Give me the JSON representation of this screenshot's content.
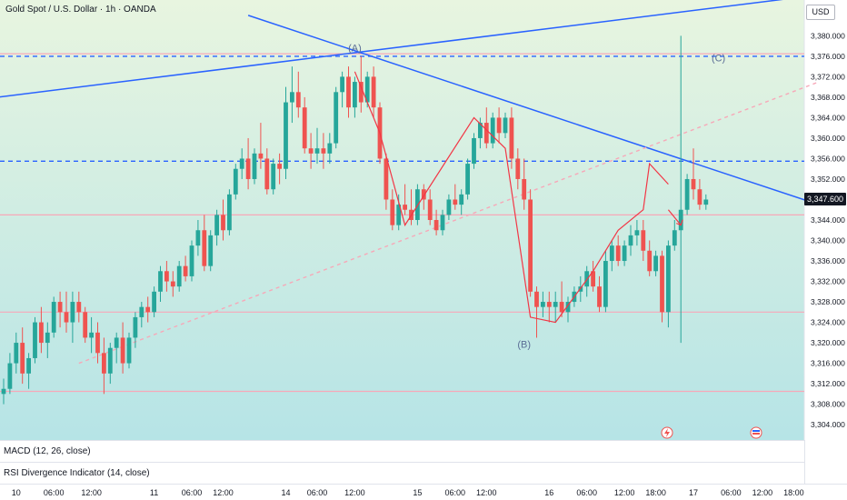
{
  "header": {
    "symbol_title": "Gold Spot / U.S. Dollar · 1h · OANDA",
    "currency": "USD"
  },
  "last_price": "3,347.600",
  "indicators": {
    "macd": "MACD (12, 26, close)",
    "rsi": "RSI Divergence Indicator (14, close)"
  },
  "colors": {
    "up": "#26a69a",
    "down": "#ef5350",
    "trendline": "#2962ff",
    "wave": "#f23645",
    "pink_level": "#f7a8b8",
    "background_top": "#e8f5e0",
    "background_bottom": "#b8e6e6"
  },
  "icons": [
    "flash-event-icon",
    "flag-event-icon"
  ],
  "chart_data": {
    "type": "candlestick",
    "title": "Gold Spot / U.S. Dollar · 1h · OANDA",
    "price_unit": "USD",
    "ylim": [
      3301,
      3387
    ],
    "y_ticks": [
      "3,380.000",
      "3,376.000",
      "3,372.000",
      "3,368.000",
      "3,364.000",
      "3,360.000",
      "3,356.000",
      "3,352.000",
      "3,348.000",
      "3,344.000",
      "3,340.000",
      "3,336.000",
      "3,332.000",
      "3,328.000",
      "3,324.000",
      "3,320.000",
      "3,316.000",
      "3,312.000",
      "3,308.000",
      "3,304.000"
    ],
    "x_ticks": [
      {
        "label": "10",
        "bar": 2
      },
      {
        "label": "06:00",
        "bar": 8
      },
      {
        "label": "12:00",
        "bar": 14
      },
      {
        "label": "11",
        "bar": 24
      },
      {
        "label": "06:00",
        "bar": 30
      },
      {
        "label": "12:00",
        "bar": 35
      },
      {
        "label": "14",
        "bar": 45
      },
      {
        "label": "06:00",
        "bar": 50
      },
      {
        "label": "12:00",
        "bar": 56
      },
      {
        "label": "15",
        "bar": 66
      },
      {
        "label": "06:00",
        "bar": 72
      },
      {
        "label": "12:00",
        "bar": 77
      },
      {
        "label": "16",
        "bar": 87
      },
      {
        "label": "06:00",
        "bar": 93
      },
      {
        "label": "12:00",
        "bar": 99
      },
      {
        "label": "18:00",
        "bar": 104
      },
      {
        "label": "17",
        "bar": 110
      },
      {
        "label": "06:00",
        "bar": 116
      },
      {
        "label": "12:00",
        "bar": 121
      },
      {
        "label": "18:00",
        "bar": 126
      }
    ],
    "ohlc": [
      [
        3310,
        3313,
        3308,
        3311
      ],
      [
        3311,
        3318,
        3310,
        3316
      ],
      [
        3316,
        3322,
        3314,
        3320
      ],
      [
        3320,
        3323,
        3312,
        3314
      ],
      [
        3314,
        3318,
        3311,
        3317
      ],
      [
        3317,
        3325,
        3316,
        3324
      ],
      [
        3324,
        3327,
        3318,
        3320
      ],
      [
        3320,
        3324,
        3317,
        3322
      ],
      [
        3322,
        3329,
        3321,
        3328
      ],
      [
        3328,
        3330,
        3323,
        3326
      ],
      [
        3326,
        3330,
        3322,
        3324
      ],
      [
        3324,
        3330,
        3320,
        3328
      ],
      [
        3328,
        3330,
        3324,
        3326
      ],
      [
        3326,
        3327,
        3320,
        3321
      ],
      [
        3321,
        3325,
        3318,
        3322
      ],
      [
        3322,
        3324,
        3316,
        3318
      ],
      [
        3318,
        3321,
        3310,
        3314
      ],
      [
        3314,
        3320,
        3312,
        3319
      ],
      [
        3319,
        3322,
        3316,
        3321
      ],
      [
        3321,
        3324,
        3314,
        3316
      ],
      [
        3316,
        3322,
        3315,
        3321
      ],
      [
        3321,
        3326,
        3319,
        3325
      ],
      [
        3325,
        3328,
        3323,
        3327
      ],
      [
        3327,
        3329,
        3324,
        3326
      ],
      [
        3326,
        3331,
        3325,
        3330
      ],
      [
        3330,
        3335,
        3328,
        3334
      ],
      [
        3334,
        3336,
        3330,
        3332
      ],
      [
        3332,
        3334,
        3329,
        3331
      ],
      [
        3331,
        3336,
        3330,
        3335
      ],
      [
        3335,
        3337,
        3332,
        3333
      ],
      [
        3333,
        3340,
        3332,
        3339
      ],
      [
        3339,
        3344,
        3337,
        3342
      ],
      [
        3342,
        3345,
        3334,
        3335
      ],
      [
        3335,
        3342,
        3334,
        3341
      ],
      [
        3341,
        3346,
        3339,
        3345
      ],
      [
        3345,
        3348,
        3340,
        3342
      ],
      [
        3342,
        3350,
        3341,
        3349
      ],
      [
        3349,
        3355,
        3348,
        3354
      ],
      [
        3354,
        3358,
        3352,
        3356
      ],
      [
        3356,
        3360,
        3350,
        3352
      ],
      [
        3352,
        3358,
        3351,
        3357
      ],
      [
        3357,
        3363,
        3354,
        3356
      ],
      [
        3356,
        3358,
        3349,
        3350
      ],
      [
        3350,
        3356,
        3349,
        3355
      ],
      [
        3355,
        3357,
        3351,
        3354
      ],
      [
        3354,
        3370,
        3352,
        3367
      ],
      [
        3367,
        3374,
        3363,
        3369
      ],
      [
        3369,
        3373,
        3364,
        3366
      ],
      [
        3366,
        3368,
        3357,
        3358
      ],
      [
        3358,
        3361,
        3354,
        3357
      ],
      [
        3357,
        3362,
        3355,
        3358
      ],
      [
        3358,
        3361,
        3354,
        3357
      ],
      [
        3357,
        3361,
        3355,
        3359
      ],
      [
        3359,
        3370,
        3358,
        3369
      ],
      [
        3369,
        3373,
        3366,
        3372
      ],
      [
        3372,
        3374,
        3364,
        3366
      ],
      [
        3366,
        3372,
        3364,
        3371
      ],
      [
        3371,
        3376,
        3365,
        3367
      ],
      [
        3367,
        3373,
        3366,
        3372
      ],
      [
        3372,
        3374,
        3364,
        3366
      ],
      [
        3366,
        3367,
        3355,
        3356
      ],
      [
        3356,
        3357,
        3346,
        3348
      ],
      [
        3348,
        3350,
        3342,
        3343
      ],
      [
        3343,
        3349,
        3342,
        3347
      ],
      [
        3347,
        3351,
        3345,
        3346
      ],
      [
        3346,
        3350,
        3343,
        3344
      ],
      [
        3344,
        3351,
        3343,
        3350
      ],
      [
        3350,
        3351,
        3346,
        3348
      ],
      [
        3348,
        3350,
        3343,
        3344
      ],
      [
        3344,
        3346,
        3341,
        3342
      ],
      [
        3342,
        3346,
        3341,
        3345
      ],
      [
        3345,
        3349,
        3344,
        3348
      ],
      [
        3348,
        3351,
        3346,
        3347
      ],
      [
        3347,
        3350,
        3345,
        3349
      ],
      [
        3349,
        3356,
        3348,
        3355
      ],
      [
        3355,
        3361,
        3354,
        3360
      ],
      [
        3360,
        3364,
        3358,
        3363
      ],
      [
        3363,
        3366,
        3358,
        3359
      ],
      [
        3359,
        3365,
        3358,
        3364
      ],
      [
        3364,
        3366,
        3359,
        3361
      ],
      [
        3361,
        3365,
        3360,
        3364
      ],
      [
        3364,
        3366,
        3354,
        3356
      ],
      [
        3356,
        3358,
        3350,
        3352
      ],
      [
        3352,
        3356,
        3346,
        3348
      ],
      [
        3348,
        3350,
        3329,
        3330
      ],
      [
        3330,
        3331,
        3321,
        3327
      ],
      [
        3327,
        3330,
        3325,
        3328
      ],
      [
        3328,
        3330,
        3324,
        3327
      ],
      [
        3327,
        3330,
        3324,
        3328
      ],
      [
        3328,
        3332,
        3325,
        3326
      ],
      [
        3326,
        3329,
        3324,
        3328
      ],
      [
        3328,
        3331,
        3327,
        3330
      ],
      [
        3330,
        3333,
        3328,
        3331
      ],
      [
        3331,
        3335,
        3329,
        3334
      ],
      [
        3334,
        3336,
        3330,
        3331
      ],
      [
        3331,
        3333,
        3326,
        3327
      ],
      [
        3327,
        3338,
        3326,
        3336
      ],
      [
        3336,
        3340,
        3334,
        3339
      ],
      [
        3339,
        3341,
        3335,
        3336
      ],
      [
        3336,
        3340,
        3335,
        3339
      ],
      [
        3339,
        3343,
        3337,
        3341
      ],
      [
        3341,
        3344,
        3339,
        3342
      ],
      [
        3342,
        3344,
        3336,
        3338
      ],
      [
        3338,
        3340,
        3333,
        3334
      ],
      [
        3334,
        3338,
        3333,
        3337
      ],
      [
        3337,
        3338,
        3324,
        3326
      ],
      [
        3326,
        3340,
        3323,
        3339
      ],
      [
        3339,
        3344,
        3338,
        3342
      ],
      [
        3342,
        3380,
        3320,
        3346
      ],
      [
        3346,
        3353,
        3345,
        3352
      ],
      [
        3352,
        3358,
        3348,
        3350
      ],
      [
        3350,
        3352,
        3346,
        3347
      ],
      [
        3347,
        3349,
        3346,
        3348
      ]
    ],
    "horizontal_levels": [
      {
        "price": 3376.0,
        "style": "dashed",
        "color": "#2962ff"
      },
      {
        "price": 3355.5,
        "style": "dashed",
        "color": "#2962ff"
      },
      {
        "price": 3376.5,
        "style": "solid",
        "color": "#f7a8b8"
      },
      {
        "price": 3345.0,
        "style": "solid",
        "color": "#f7a8b8"
      },
      {
        "price": 3326.0,
        "style": "solid",
        "color": "#f7a8b8"
      },
      {
        "price": 3310.5,
        "style": "solid",
        "color": "#f7a8b8"
      }
    ],
    "trendlines": [
      {
        "from": [
          -1,
          3368
        ],
        "to": [
          130,
          3388
        ],
        "style": "solid",
        "color": "#2962ff"
      },
      {
        "from": [
          39,
          3384
        ],
        "to": [
          130,
          3347
        ],
        "style": "solid",
        "color": "#2962ff"
      },
      {
        "from": [
          12,
          3316
        ],
        "to": [
          130,
          3371
        ],
        "style": "dashed",
        "color": "#f7a8b8"
      }
    ],
    "wave_path": [
      [
        56,
        3373
      ],
      [
        60,
        3361
      ],
      [
        64,
        3343
      ],
      [
        75,
        3364
      ],
      [
        80,
        3358
      ],
      [
        84,
        3325
      ],
      [
        88,
        3324
      ],
      [
        94,
        3334
      ],
      [
        98,
        3342
      ],
      [
        102,
        3346
      ],
      [
        103,
        3355
      ],
      [
        106,
        3351
      ]
    ],
    "wave_arrow": {
      "from": [
        106,
        3346
      ],
      "to": [
        108,
        3343
      ]
    },
    "wave_labels": [
      {
        "text": "(A)",
        "bar": 56,
        "price": 3377
      },
      {
        "text": "(B)",
        "bar": 83,
        "price": 3319
      },
      {
        "text": "(C)",
        "bar": 114,
        "price": 3375
      }
    ],
    "events": [
      "flash-event-icon",
      "flag-event-icon"
    ]
  }
}
